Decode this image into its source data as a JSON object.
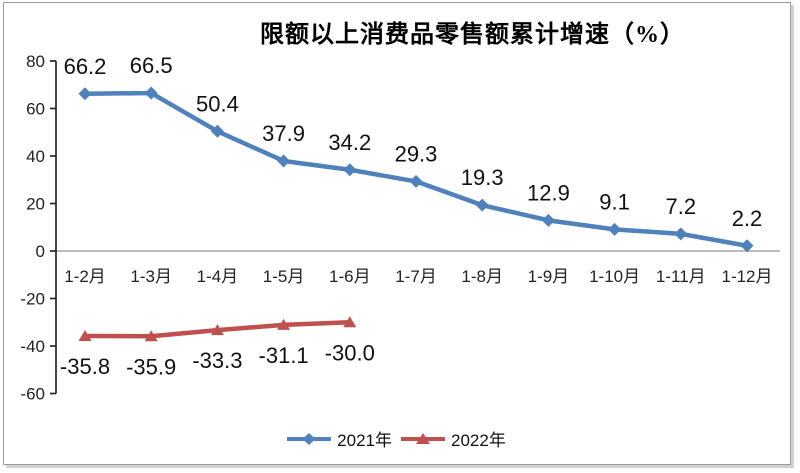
{
  "frame": {
    "background": "#ffffff",
    "border_color": "#9a9a9a"
  },
  "chart_data": {
    "type": "line",
    "title": "限额以上消费品零售额累计增速（%）",
    "categories": [
      "1-2月",
      "1-3月",
      "1-4月",
      "1-5月",
      "1-6月",
      "1-7月",
      "1-8月",
      "1-9月",
      "1-10月",
      "1-11月",
      "1-12月"
    ],
    "series": [
      {
        "name": "2021年",
        "color": "#4F81BD",
        "marker": "diamond",
        "label_position": "above",
        "values": [
          66.2,
          66.5,
          50.4,
          37.9,
          34.2,
          29.3,
          19.3,
          12.9,
          9.1,
          7.2,
          2.2
        ]
      },
      {
        "name": "2022年",
        "color": "#C0504D",
        "marker": "triangle",
        "label_position": "below",
        "values": [
          -35.8,
          -35.9,
          -33.3,
          -31.1,
          -30.0
        ]
      }
    ],
    "xlabel": "",
    "ylabel": "",
    "ylim": [
      -60,
      80
    ],
    "ytick_step": 20,
    "yticks": [
      80,
      60,
      40,
      20,
      0,
      -20,
      -40,
      -60
    ],
    "grid": false,
    "zero_line_color": "#a6a6a6",
    "axis_color": "#262626",
    "legend_position": "bottom"
  }
}
